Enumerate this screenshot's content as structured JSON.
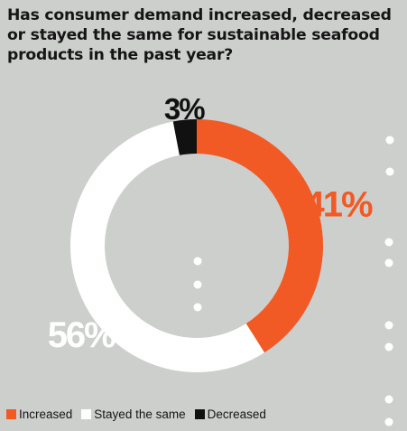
{
  "title": "Has consumer demand increased, decreased or stayed the same for sustainable seafood products in the past year?",
  "chart_data": {
    "type": "pie",
    "variant": "donut",
    "title": "Has consumer demand increased, decreased or stayed the same for sustainable seafood products in the past year?",
    "categories": [
      "Increased",
      "Stayed the same",
      "Decreased"
    ],
    "values": [
      41,
      56,
      3
    ],
    "unit": "%",
    "data_labels": [
      "41%",
      "56%",
      "3%"
    ],
    "colors": [
      "#f15a24",
      "#ffffff",
      "#111111"
    ],
    "legend_position": "bottom-left",
    "start_angle": "12 o'clock",
    "direction": "clockwise"
  },
  "legend": [
    {
      "label": "Increased",
      "color": "#f15a24"
    },
    {
      "label": "Stayed the same",
      "color": "#ffffff"
    },
    {
      "label": "Decreased",
      "color": "#111111"
    }
  ],
  "colors": {
    "background": "#cdcfcd",
    "text": "#151515",
    "decorative_dots": "#ffffff"
  }
}
